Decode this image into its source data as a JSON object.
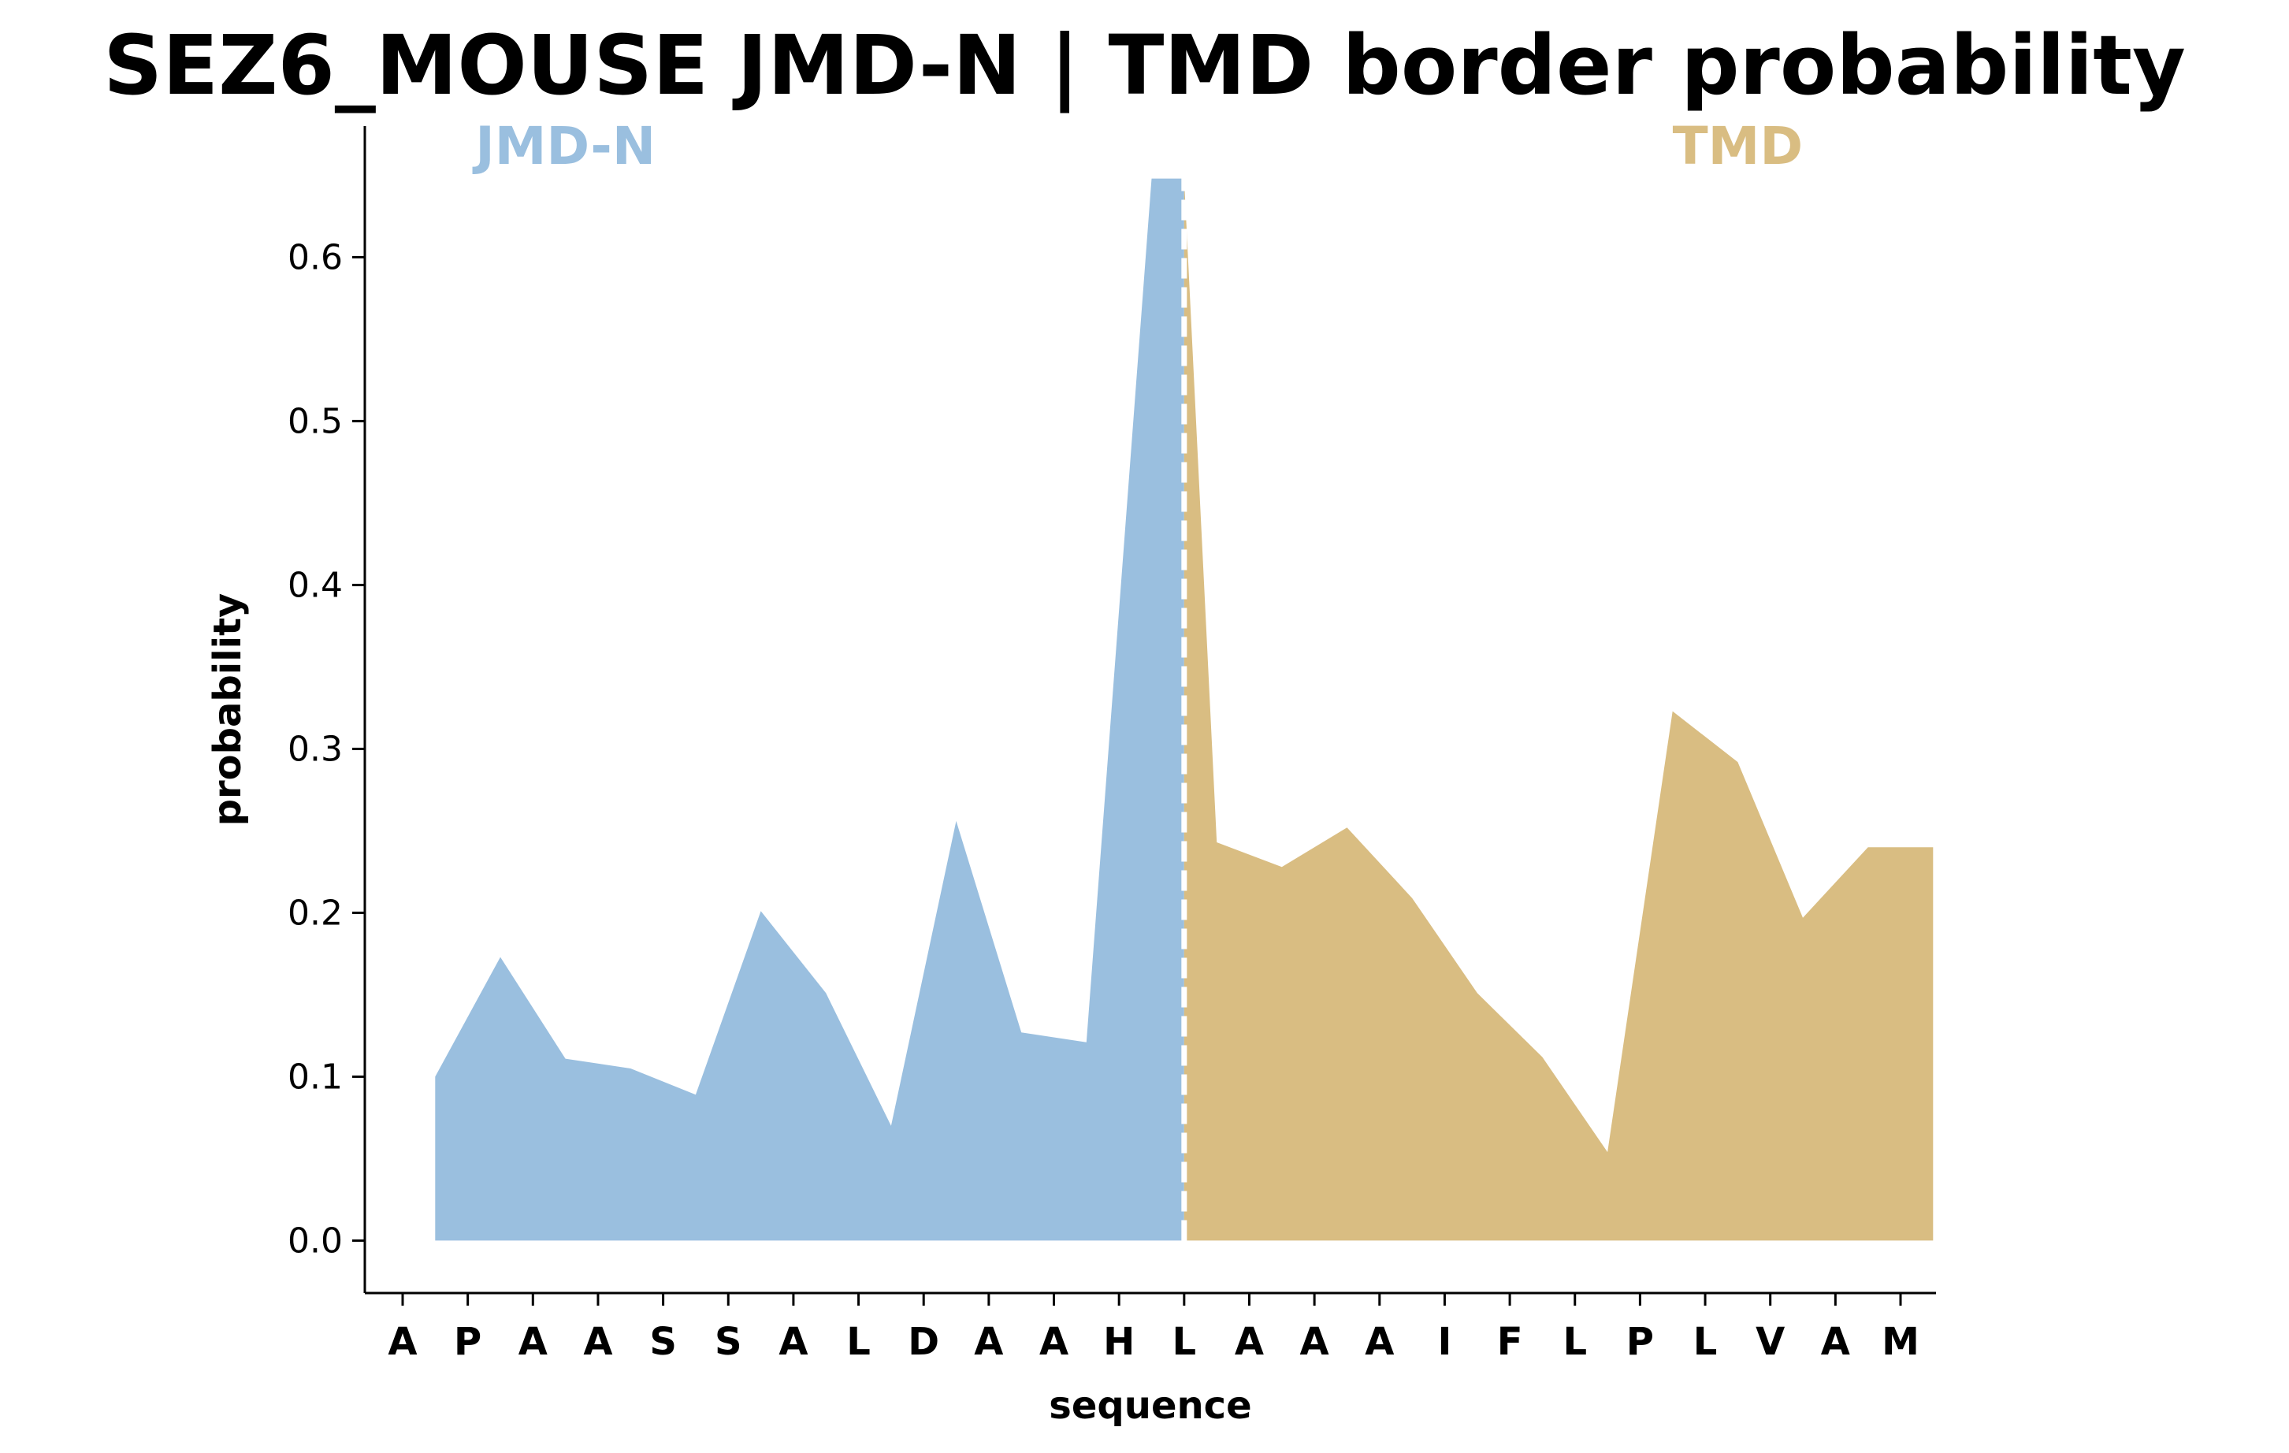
{
  "chart_data": {
    "type": "area",
    "title": "SEZ6_MOUSE JMD-N | TMD border probability",
    "xlabel": "sequence",
    "ylabel": "probability",
    "ylim": [
      -0.032,
      0.68
    ],
    "yticks": [
      0.0,
      0.1,
      0.2,
      0.3,
      0.4,
      0.5,
      0.6
    ],
    "ytick_labels": [
      "0.0",
      "0.1",
      "0.2",
      "0.3",
      "0.4",
      "0.5",
      "0.6"
    ],
    "categories": [
      "A",
      "P",
      "A",
      "A",
      "S",
      "S",
      "A",
      "L",
      "D",
      "A",
      "A",
      "H",
      "L",
      "A",
      "A",
      "A",
      "I",
      "F",
      "L",
      "P",
      "L",
      "V",
      "A",
      "M"
    ],
    "grid": false,
    "border_position": 12,
    "region_labels": [
      {
        "name": "JMD-N",
        "color": "#9ABFDF"
      },
      {
        "name": "TMD",
        "color": "#D9BD82"
      }
    ],
    "series": [
      {
        "name": "JMD-N",
        "color": "#9ABFDF",
        "x": [
          0.5,
          1.5,
          2.5,
          3.5,
          4.5,
          5.5,
          6.5,
          7.5,
          8.5,
          9.5,
          10.5,
          11.5,
          12
        ],
        "values": [
          0.1,
          0.173,
          0.111,
          0.105,
          0.089,
          0.201,
          0.151,
          0.07,
          0.256,
          0.127,
          0.121,
          0.648,
          0.648
        ]
      },
      {
        "name": "TMD",
        "color": "#D9BD82",
        "x": [
          12,
          12.5,
          13.5,
          14.5,
          15.5,
          16.5,
          17.5,
          18.5,
          19.5,
          20.5,
          21.5,
          22.5,
          23.5
        ],
        "values": [
          0.648,
          0.243,
          0.228,
          0.252,
          0.209,
          0.151,
          0.112,
          0.054,
          0.323,
          0.292,
          0.197,
          0.24,
          0.24
        ]
      }
    ]
  }
}
